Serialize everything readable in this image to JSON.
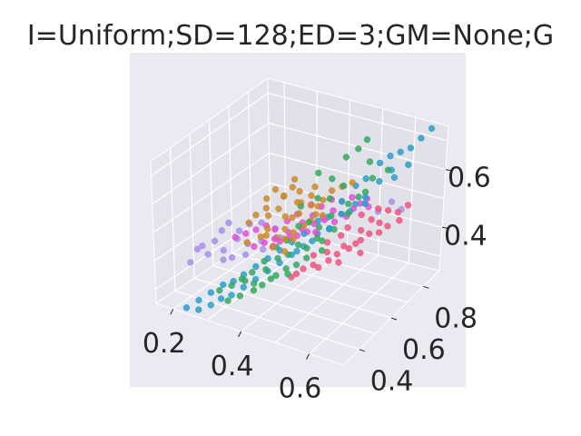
{
  "chart_data": {
    "type": "scatter",
    "projection": "3d",
    "title": "I=Uniform;SD=128;ED=3;GM=None;G",
    "x_ticks": [
      "0.2",
      "0.4",
      "0.6"
    ],
    "y_ticks": [
      "0.4",
      "0.6",
      "0.8"
    ],
    "z_ticks": [
      "0.4",
      "0.6"
    ],
    "xlim": [
      0.15,
      0.7
    ],
    "ylim": [
      0.3,
      0.9
    ],
    "zlim": [
      0.25,
      0.75
    ],
    "grid": true,
    "colors": {
      "pane": "#eaeaf2",
      "grid": "#ffffff",
      "text": "#262626"
    },
    "series": [
      {
        "color": "#cc8a2a",
        "points": [
          [
            0.36,
            0.52,
            0.55
          ],
          [
            0.4,
            0.55,
            0.52
          ],
          [
            0.38,
            0.49,
            0.5
          ],
          [
            0.42,
            0.58,
            0.56
          ],
          [
            0.45,
            0.6,
            0.55
          ],
          [
            0.34,
            0.5,
            0.53
          ],
          [
            0.39,
            0.56,
            0.58
          ],
          [
            0.44,
            0.62,
            0.57
          ],
          [
            0.41,
            0.53,
            0.49
          ],
          [
            0.37,
            0.47,
            0.48
          ],
          [
            0.43,
            0.57,
            0.53
          ],
          [
            0.47,
            0.63,
            0.56
          ],
          [
            0.35,
            0.54,
            0.57
          ],
          [
            0.4,
            0.59,
            0.6
          ],
          [
            0.46,
            0.58,
            0.51
          ],
          [
            0.42,
            0.51,
            0.47
          ],
          [
            0.38,
            0.55,
            0.54
          ],
          [
            0.44,
            0.64,
            0.59
          ],
          [
            0.48,
            0.66,
            0.58
          ],
          [
            0.33,
            0.48,
            0.51
          ],
          [
            0.39,
            0.52,
            0.46
          ],
          [
            0.45,
            0.56,
            0.5
          ],
          [
            0.41,
            0.61,
            0.58
          ],
          [
            0.36,
            0.57,
            0.59
          ],
          [
            0.43,
            0.54,
            0.48
          ],
          [
            0.5,
            0.68,
            0.59
          ],
          [
            0.37,
            0.5,
            0.47
          ],
          [
            0.46,
            0.62,
            0.54
          ],
          [
            0.4,
            0.48,
            0.45
          ],
          [
            0.34,
            0.45,
            0.46
          ],
          [
            0.42,
            0.6,
            0.55
          ],
          [
            0.48,
            0.61,
            0.52
          ],
          [
            0.38,
            0.58,
            0.57
          ],
          [
            0.44,
            0.52,
            0.47
          ],
          [
            0.36,
            0.53,
            0.52
          ],
          [
            0.52,
            0.7,
            0.6
          ],
          [
            0.41,
            0.57,
            0.51
          ],
          [
            0.39,
            0.62,
            0.61
          ],
          [
            0.47,
            0.59,
            0.53
          ],
          [
            0.43,
            0.49,
            0.44
          ]
        ]
      },
      {
        "color": "#a98ee8",
        "points": [
          [
            0.22,
            0.4,
            0.42
          ],
          [
            0.25,
            0.44,
            0.44
          ],
          [
            0.27,
            0.45,
            0.41
          ],
          [
            0.3,
            0.47,
            0.45
          ],
          [
            0.24,
            0.42,
            0.4
          ],
          [
            0.29,
            0.5,
            0.46
          ],
          [
            0.32,
            0.49,
            0.43
          ],
          [
            0.26,
            0.46,
            0.47
          ],
          [
            0.31,
            0.52,
            0.48
          ],
          [
            0.35,
            0.51,
            0.44
          ],
          [
            0.28,
            0.43,
            0.39
          ],
          [
            0.33,
            0.46,
            0.41
          ],
          [
            0.21,
            0.38,
            0.38
          ],
          [
            0.37,
            0.55,
            0.47
          ],
          [
            0.34,
            0.53,
            0.49
          ],
          [
            0.3,
            0.44,
            0.4
          ],
          [
            0.6,
            0.78,
            0.52
          ],
          [
            0.58,
            0.74,
            0.5
          ],
          [
            0.62,
            0.8,
            0.49
          ],
          [
            0.55,
            0.72,
            0.53
          ],
          [
            0.27,
            0.48,
            0.49
          ],
          [
            0.39,
            0.54,
            0.45
          ],
          [
            0.23,
            0.41,
            0.43
          ],
          [
            0.36,
            0.5,
            0.42
          ]
        ]
      },
      {
        "color": "#35a85e",
        "points": [
          [
            0.5,
            0.7,
            0.68
          ],
          [
            0.52,
            0.73,
            0.7
          ],
          [
            0.48,
            0.66,
            0.62
          ],
          [
            0.55,
            0.74,
            0.66
          ],
          [
            0.45,
            0.64,
            0.64
          ],
          [
            0.53,
            0.76,
            0.72
          ],
          [
            0.47,
            0.6,
            0.58
          ],
          [
            0.43,
            0.58,
            0.55
          ],
          [
            0.49,
            0.63,
            0.57
          ],
          [
            0.51,
            0.67,
            0.6
          ],
          [
            0.46,
            0.57,
            0.51
          ],
          [
            0.44,
            0.55,
            0.5
          ],
          [
            0.48,
            0.59,
            0.49
          ],
          [
            0.42,
            0.52,
            0.46
          ],
          [
            0.4,
            0.5,
            0.44
          ],
          [
            0.45,
            0.53,
            0.45
          ],
          [
            0.5,
            0.62,
            0.52
          ],
          [
            0.38,
            0.47,
            0.4
          ],
          [
            0.41,
            0.49,
            0.41
          ],
          [
            0.43,
            0.51,
            0.42
          ],
          [
            0.36,
            0.44,
            0.37
          ],
          [
            0.39,
            0.46,
            0.38
          ],
          [
            0.47,
            0.54,
            0.44
          ],
          [
            0.34,
            0.42,
            0.35
          ],
          [
            0.37,
            0.43,
            0.34
          ],
          [
            0.53,
            0.66,
            0.55
          ],
          [
            0.56,
            0.7,
            0.58
          ],
          [
            0.44,
            0.48,
            0.39
          ],
          [
            0.32,
            0.4,
            0.33
          ],
          [
            0.35,
            0.39,
            0.31
          ],
          [
            0.49,
            0.56,
            0.47
          ],
          [
            0.54,
            0.64,
            0.53
          ],
          [
            0.41,
            0.45,
            0.36
          ],
          [
            0.46,
            0.5,
            0.4
          ],
          [
            0.3,
            0.37,
            0.32
          ],
          [
            0.57,
            0.72,
            0.62
          ],
          [
            0.52,
            0.6,
            0.49
          ],
          [
            0.38,
            0.41,
            0.33
          ],
          [
            0.42,
            0.46,
            0.37
          ],
          [
            0.5,
            0.57,
            0.46
          ],
          [
            0.33,
            0.36,
            0.3
          ],
          [
            0.45,
            0.47,
            0.38
          ],
          [
            0.55,
            0.68,
            0.57
          ],
          [
            0.48,
            0.52,
            0.42
          ],
          [
            0.4,
            0.42,
            0.35
          ],
          [
            0.36,
            0.4,
            0.36
          ],
          [
            0.59,
            0.77,
            0.63
          ],
          [
            0.51,
            0.55,
            0.44
          ]
        ]
      },
      {
        "color": "#f0537e",
        "points": [
          [
            0.55,
            0.7,
            0.5
          ],
          [
            0.57,
            0.72,
            0.48
          ],
          [
            0.53,
            0.66,
            0.47
          ],
          [
            0.58,
            0.74,
            0.51
          ],
          [
            0.52,
            0.64,
            0.45
          ],
          [
            0.56,
            0.68,
            0.46
          ],
          [
            0.6,
            0.76,
            0.5
          ],
          [
            0.54,
            0.62,
            0.43
          ],
          [
            0.5,
            0.6,
            0.44
          ],
          [
            0.59,
            0.73,
            0.47
          ],
          [
            0.51,
            0.58,
            0.42
          ],
          [
            0.57,
            0.66,
            0.44
          ],
          [
            0.62,
            0.78,
            0.49
          ],
          [
            0.48,
            0.56,
            0.41
          ],
          [
            0.55,
            0.63,
            0.42
          ],
          [
            0.61,
            0.74,
            0.46
          ],
          [
            0.49,
            0.54,
            0.39
          ],
          [
            0.53,
            0.6,
            0.41
          ],
          [
            0.58,
            0.69,
            0.45
          ],
          [
            0.47,
            0.52,
            0.38
          ],
          [
            0.64,
            0.8,
            0.51
          ],
          [
            0.52,
            0.57,
            0.4
          ],
          [
            0.56,
            0.65,
            0.43
          ],
          [
            0.46,
            0.5,
            0.37
          ],
          [
            0.6,
            0.71,
            0.45
          ],
          [
            0.54,
            0.59,
            0.39
          ],
          [
            0.5,
            0.55,
            0.38
          ],
          [
            0.63,
            0.77,
            0.47
          ],
          [
            0.58,
            0.64,
            0.41
          ],
          [
            0.45,
            0.49,
            0.36
          ]
        ]
      },
      {
        "color": "#e34fd6",
        "points": [
          [
            0.44,
            0.62,
            0.54
          ],
          [
            0.46,
            0.64,
            0.53
          ],
          [
            0.42,
            0.58,
            0.52
          ],
          [
            0.48,
            0.66,
            0.55
          ],
          [
            0.4,
            0.56,
            0.5
          ],
          [
            0.45,
            0.61,
            0.51
          ],
          [
            0.5,
            0.68,
            0.54
          ],
          [
            0.43,
            0.59,
            0.49
          ],
          [
            0.47,
            0.63,
            0.5
          ],
          [
            0.38,
            0.53,
            0.48
          ],
          [
            0.52,
            0.7,
            0.55
          ],
          [
            0.41,
            0.55,
            0.47
          ],
          [
            0.49,
            0.65,
            0.52
          ],
          [
            0.36,
            0.52,
            0.49
          ],
          [
            0.44,
            0.57,
            0.48
          ],
          [
            0.54,
            0.71,
            0.53
          ],
          [
            0.39,
            0.51,
            0.46
          ],
          [
            0.46,
            0.6,
            0.49
          ],
          [
            0.34,
            0.5,
            0.48
          ],
          [
            0.51,
            0.66,
            0.51
          ],
          [
            0.42,
            0.54,
            0.46
          ],
          [
            0.48,
            0.62,
            0.5
          ],
          [
            0.37,
            0.49,
            0.45
          ],
          [
            0.53,
            0.69,
            0.52
          ],
          [
            0.45,
            0.58,
            0.47
          ],
          [
            0.32,
            0.48,
            0.47
          ],
          [
            0.5,
            0.64,
            0.49
          ],
          [
            0.4,
            0.52,
            0.45
          ],
          [
            0.55,
            0.73,
            0.54
          ],
          [
            0.43,
            0.56,
            0.46
          ],
          [
            0.47,
            0.59,
            0.47
          ],
          [
            0.35,
            0.47,
            0.44
          ],
          [
            0.52,
            0.67,
            0.5
          ],
          [
            0.39,
            0.5,
            0.44
          ],
          [
            0.56,
            0.72,
            0.52
          ],
          [
            0.3,
            0.46,
            0.46
          ]
        ]
      },
      {
        "color": "#2a9fc8",
        "points": [
          [
            0.58,
            0.8,
            0.66
          ],
          [
            0.6,
            0.82,
            0.67
          ],
          [
            0.56,
            0.78,
            0.64
          ],
          [
            0.62,
            0.84,
            0.68
          ],
          [
            0.54,
            0.74,
            0.6
          ],
          [
            0.59,
            0.79,
            0.62
          ],
          [
            0.66,
            0.88,
            0.74
          ],
          [
            0.64,
            0.86,
            0.71
          ],
          [
            0.52,
            0.72,
            0.58
          ],
          [
            0.57,
            0.76,
            0.59
          ],
          [
            0.55,
            0.72,
            0.55
          ],
          [
            0.5,
            0.68,
            0.54
          ],
          [
            0.53,
            0.7,
            0.53
          ],
          [
            0.48,
            0.64,
            0.5
          ],
          [
            0.51,
            0.66,
            0.51
          ],
          [
            0.46,
            0.62,
            0.49
          ],
          [
            0.49,
            0.63,
            0.47
          ],
          [
            0.44,
            0.58,
            0.46
          ],
          [
            0.47,
            0.6,
            0.46
          ],
          [
            0.42,
            0.55,
            0.44
          ],
          [
            0.45,
            0.56,
            0.43
          ],
          [
            0.4,
            0.52,
            0.42
          ],
          [
            0.43,
            0.53,
            0.41
          ],
          [
            0.38,
            0.49,
            0.4
          ],
          [
            0.41,
            0.5,
            0.39
          ],
          [
            0.36,
            0.46,
            0.38
          ],
          [
            0.39,
            0.47,
            0.37
          ],
          [
            0.34,
            0.43,
            0.36
          ],
          [
            0.37,
            0.44,
            0.35
          ],
          [
            0.32,
            0.41,
            0.34
          ],
          [
            0.35,
            0.41,
            0.33
          ],
          [
            0.3,
            0.39,
            0.33
          ],
          [
            0.33,
            0.38,
            0.31
          ],
          [
            0.28,
            0.36,
            0.31
          ],
          [
            0.31,
            0.36,
            0.3
          ],
          [
            0.26,
            0.33,
            0.29
          ],
          [
            0.29,
            0.34,
            0.28
          ],
          [
            0.27,
            0.31,
            0.27
          ],
          [
            0.24,
            0.3,
            0.27
          ],
          [
            0.61,
            0.77,
            0.61
          ],
          [
            0.63,
            0.81,
            0.64
          ],
          [
            0.53,
            0.67,
            0.52
          ],
          [
            0.47,
            0.57,
            0.45
          ],
          [
            0.56,
            0.7,
            0.54
          ],
          [
            0.44,
            0.54,
            0.42
          ],
          [
            0.5,
            0.61,
            0.48
          ]
        ]
      }
    ]
  }
}
